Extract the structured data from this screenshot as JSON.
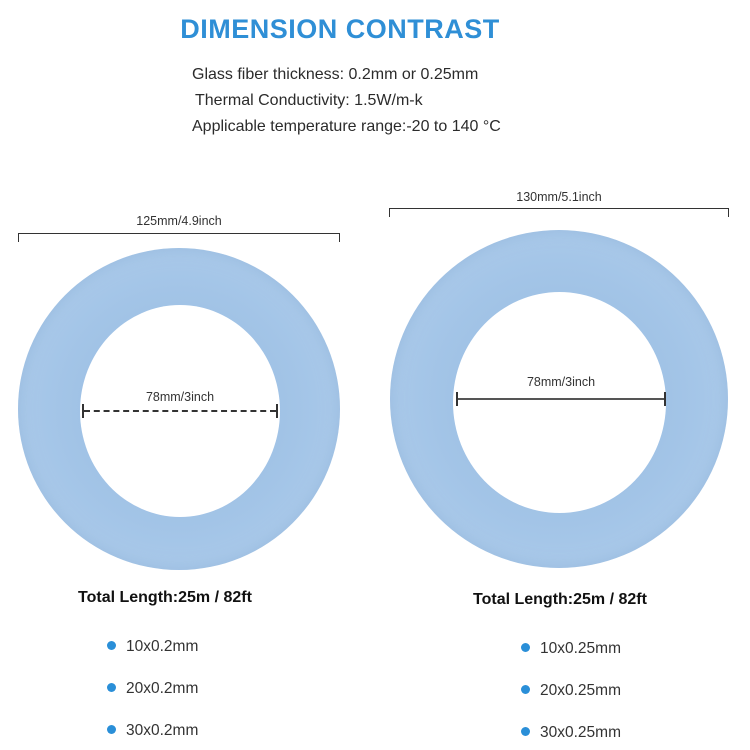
{
  "title": "DIMENSION CONTRAST",
  "colors": {
    "title": "#2f8fd6",
    "bullet": "#2a8fd8",
    "tape_light": "#b7d3ef",
    "tape_mid": "#a5c6e8",
    "tape_dark": "#94b9e0"
  },
  "specs": [
    "Glass fiber thickness: 0.2mm or 0.25mm",
    "Thermal Conductivity: 1.5W/m-k",
    "Applicable temperature range:-20 to 140 °C"
  ],
  "rolls": [
    {
      "outer_label": "125mm/4.9inch",
      "inner_label": "78mm/3inch",
      "total_length": "Total Length:25m / 82ft",
      "options": [
        "10x0.2mm",
        "20x0.2mm",
        "30x0.2mm"
      ]
    },
    {
      "outer_label": "130mm/5.1inch",
      "inner_label": "78mm/3inch",
      "total_length": "Total Length:25m / 82ft",
      "options": [
        "10x0.25mm",
        "20x0.25mm",
        "30x0.25mm"
      ]
    }
  ]
}
